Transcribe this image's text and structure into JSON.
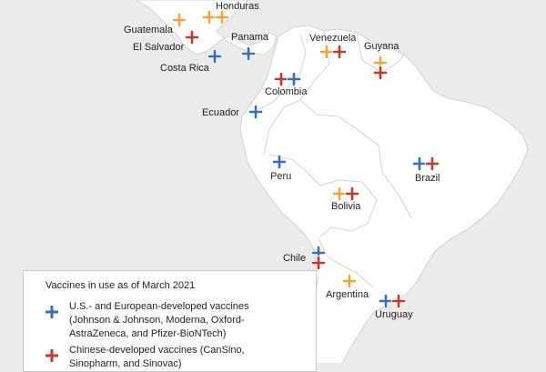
{
  "colors": {
    "western": "#3b6fb4",
    "chinese": "#c0392b",
    "russian": "#f0a540",
    "land": "#ffffff",
    "border": "#c9c9c9",
    "sea": "#ebebeb"
  },
  "countries": [
    {
      "name": "Honduras",
      "vaccines": [
        "russian",
        "russian"
      ]
    },
    {
      "name": "Guatemala",
      "vaccines": [
        "russian"
      ]
    },
    {
      "name": "El Salvador",
      "vaccines": [
        "chinese"
      ]
    },
    {
      "name": "Costa Rica",
      "vaccines": [
        "western"
      ]
    },
    {
      "name": "Panama",
      "vaccines": [
        "western"
      ]
    },
    {
      "name": "Venezuela",
      "vaccines": [
        "russian",
        "chinese"
      ]
    },
    {
      "name": "Guyana",
      "vaccines": [
        "russian",
        "chinese"
      ]
    },
    {
      "name": "Colombia",
      "vaccines": [
        "chinese",
        "western"
      ]
    },
    {
      "name": "Ecuador",
      "vaccines": [
        "western"
      ]
    },
    {
      "name": "Peru",
      "vaccines": [
        "western"
      ]
    },
    {
      "name": "Brazil",
      "vaccines": [
        "western",
        "chinese"
      ]
    },
    {
      "name": "Bolivia",
      "vaccines": [
        "russian",
        "chinese"
      ]
    },
    {
      "name": "Chile",
      "vaccines": [
        "western",
        "chinese"
      ]
    },
    {
      "name": "Argentina",
      "vaccines": [
        "russian"
      ]
    },
    {
      "name": "Uruguay",
      "vaccines": [
        "western",
        "chinese"
      ]
    }
  ],
  "legend": {
    "title": "Vaccines in use as of March 2021",
    "western_label": "U.S.- and European-developed vaccines (Johnson & Johnson, Moderna, Oxford-AstraZeneca, and Pfizer-BioNTech)",
    "chinese_label": "Chinese-developed vaccines (CanSino, Sinopharm, and Sinovac)"
  }
}
